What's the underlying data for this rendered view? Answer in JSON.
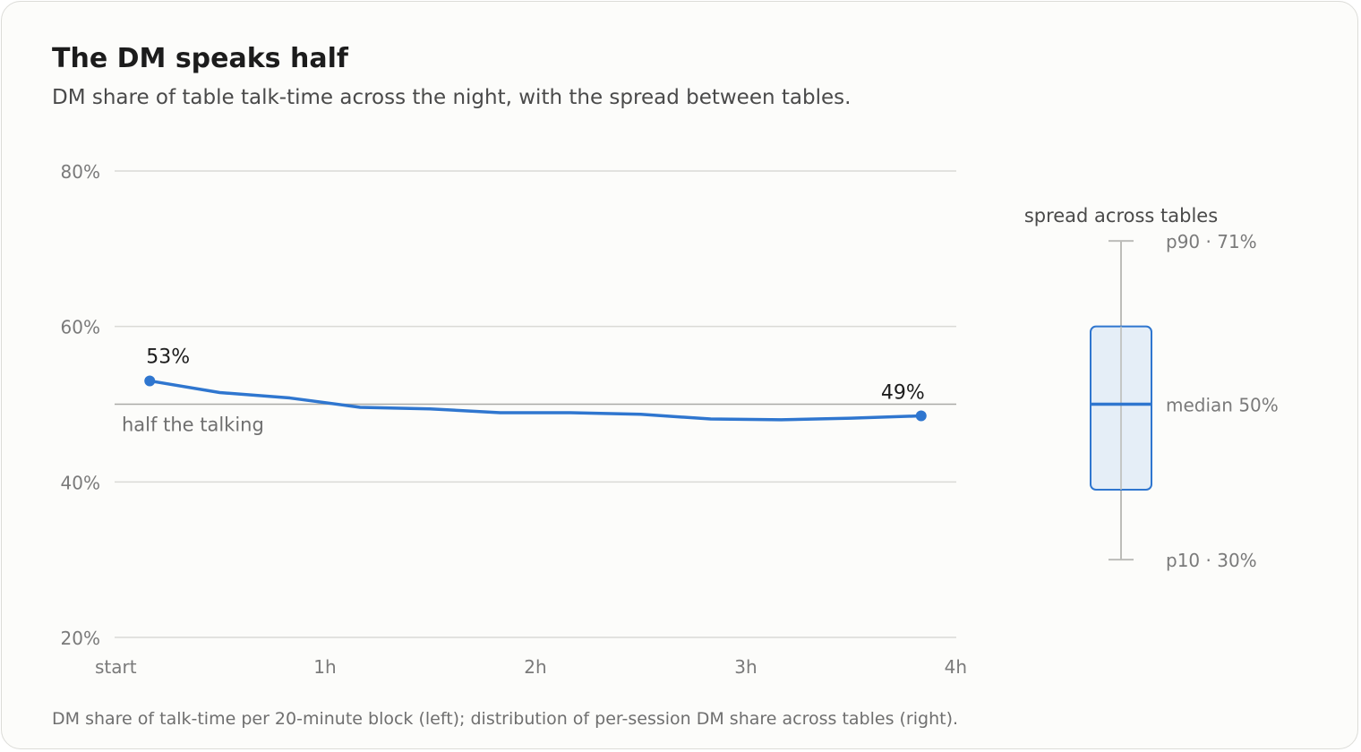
{
  "title": "The DM speaks half",
  "subtitle": "DM share of table talk-time across the night, with the spread between tables.",
  "footnote": "DM share of talk-time per 20-minute block (left); distribution of per-session DM share across tables (right).",
  "colors": {
    "line": "#2f76cf",
    "box_fill": "#e1ebf6",
    "grid": "#dadad6",
    "reference": "#a9a9a6",
    "whisker": "#bdbdb9"
  },
  "chart_data": [
    {
      "type": "line",
      "x_unit": "hours",
      "x": [
        0.167,
        0.5,
        0.833,
        1.167,
        1.5,
        1.833,
        2.167,
        2.5,
        2.833,
        3.167,
        3.5,
        3.833
      ],
      "series": [
        {
          "values": [
            53.0,
            51.5,
            50.8,
            49.6,
            49.4,
            48.9,
            48.9,
            48.7,
            48.1,
            48.0,
            48.2,
            48.5
          ]
        }
      ],
      "xlim": [
        0,
        4
      ],
      "ylim": [
        20,
        80
      ],
      "x_ticks": [
        {
          "value": 0,
          "label": "start"
        },
        {
          "value": 1,
          "label": "1h"
        },
        {
          "value": 2,
          "label": "2h"
        },
        {
          "value": 3,
          "label": "3h"
        },
        {
          "value": 4,
          "label": "4h"
        }
      ],
      "y_ticks": [
        {
          "value": 20,
          "label": "20%"
        },
        {
          "value": 40,
          "label": "40%"
        },
        {
          "value": 60,
          "label": "60%"
        },
        {
          "value": 80,
          "label": "80%"
        }
      ],
      "grid": true,
      "reference_line": {
        "value": 50,
        "label": "half the talking"
      },
      "data_labels": {
        "first": "53%",
        "last": "49%"
      }
    },
    {
      "type": "box",
      "title": "spread across tables",
      "p10": 30,
      "q1": 39,
      "median": 50,
      "q3": 60,
      "p90": 71,
      "labels": {
        "p90": "p90 · 71%",
        "median": "median 50%",
        "p10": "p10 · 30%"
      }
    }
  ]
}
